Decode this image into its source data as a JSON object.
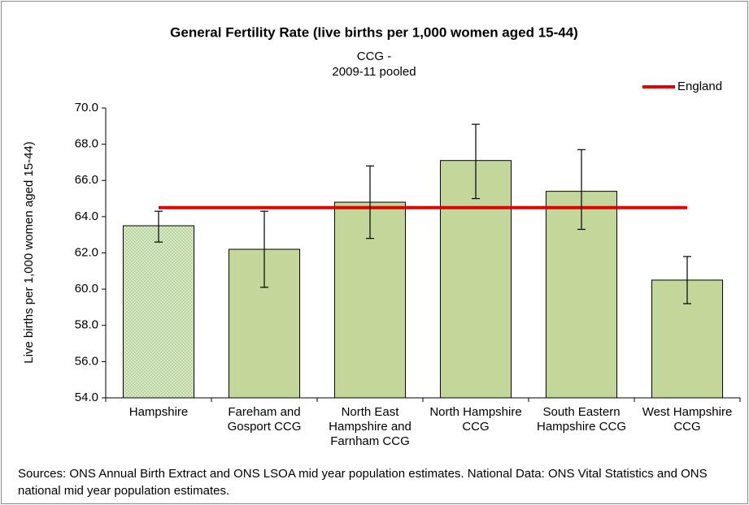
{
  "chart_data": {
    "type": "bar",
    "title": "General Fertility Rate (live births per 1,000 women aged 15-44)",
    "subtitle": [
      "CCG -",
      "2009-11 pooled"
    ],
    "ylabel": "Live births per 1,000 women aged 15-44)",
    "categories": [
      "Hampshire",
      "Fareham and Gosport CCG",
      "North East Hampshire and Farnham CCG",
      "North Hampshire CCG",
      "South Eastern Hampshire CCG",
      "West Hampshire CCG"
    ],
    "values": [
      63.5,
      62.2,
      64.8,
      67.1,
      65.4,
      60.5
    ],
    "ci_lower": [
      62.6,
      60.1,
      62.8,
      65.0,
      63.3,
      59.2
    ],
    "ci_upper": [
      64.3,
      64.3,
      66.8,
      69.1,
      67.7,
      61.8
    ],
    "color": "#c4d79b",
    "highlight_color": "#e2efd4",
    "reference_lines": [
      {
        "name": "England",
        "color": "#e00000",
        "value": 64.5
      }
    ],
    "legend": "top-right",
    "ylim": [
      54,
      70
    ],
    "yticks": [
      {
        "value": 54,
        "label": "54.0"
      },
      {
        "value": 56,
        "label": "56.0"
      },
      {
        "value": 58,
        "label": "58.0"
      },
      {
        "value": 60,
        "label": "60.0"
      },
      {
        "value": 62,
        "label": "62.0"
      },
      {
        "value": 64,
        "label": "64.0"
      },
      {
        "value": 66,
        "label": "66.0"
      },
      {
        "value": 68,
        "label": "68.0"
      },
      {
        "value": 70,
        "label": "70.0"
      }
    ],
    "grid": false,
    "source": "Sources: ONS Annual Birth Extract and ONS LSOA mid year population estimates. National Data: ONS Vital Statistics and ONS national mid year population estimates."
  }
}
